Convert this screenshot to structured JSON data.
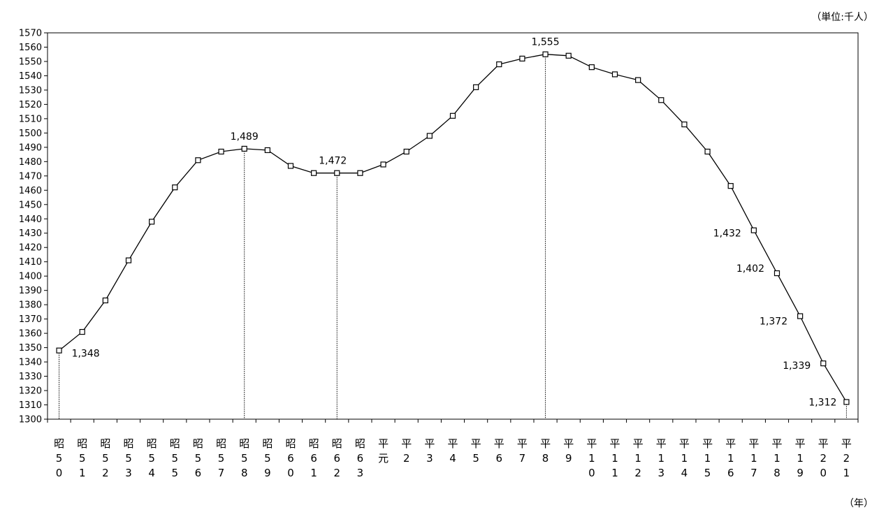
{
  "unit_label": "（単位:千人）",
  "x_unit_label": "（年）",
  "chart_data": {
    "type": "line",
    "title": "",
    "xlabel": "（年）",
    "ylabel": "（単位:千人）",
    "ylim": [
      1300,
      1570
    ],
    "ystep": 10,
    "grid": false,
    "categories": [
      [
        "昭",
        "5",
        "0"
      ],
      [
        "昭",
        "5",
        "1"
      ],
      [
        "昭",
        "5",
        "2"
      ],
      [
        "昭",
        "5",
        "3"
      ],
      [
        "昭",
        "5",
        "4"
      ],
      [
        "昭",
        "5",
        "5"
      ],
      [
        "昭",
        "5",
        "6"
      ],
      [
        "昭",
        "5",
        "7"
      ],
      [
        "昭",
        "5",
        "8"
      ],
      [
        "昭",
        "5",
        "9"
      ],
      [
        "昭",
        "6",
        "0"
      ],
      [
        "昭",
        "6",
        "1"
      ],
      [
        "昭",
        "6",
        "2"
      ],
      [
        "昭",
        "6",
        "3"
      ],
      [
        "平",
        "元"
      ],
      [
        "平",
        "2"
      ],
      [
        "平",
        "3"
      ],
      [
        "平",
        "4"
      ],
      [
        "平",
        "5"
      ],
      [
        "平",
        "6"
      ],
      [
        "平",
        "7"
      ],
      [
        "平",
        "8"
      ],
      [
        "平",
        "9"
      ],
      [
        "平",
        "1",
        "0"
      ],
      [
        "平",
        "1",
        "1"
      ],
      [
        "平",
        "1",
        "2"
      ],
      [
        "平",
        "1",
        "3"
      ],
      [
        "平",
        "1",
        "4"
      ],
      [
        "平",
        "1",
        "5"
      ],
      [
        "平",
        "1",
        "6"
      ],
      [
        "平",
        "1",
        "7"
      ],
      [
        "平",
        "1",
        "8"
      ],
      [
        "平",
        "1",
        "9"
      ],
      [
        "平",
        "2",
        "0"
      ],
      [
        "平",
        "2",
        "1"
      ]
    ],
    "series": [
      {
        "values": [
          1348,
          1361,
          1383,
          1411,
          1438,
          1462,
          1481,
          1487,
          1489,
          1488,
          1477,
          1472,
          1472,
          1472,
          1478,
          1487,
          1498,
          1512,
          1532,
          1548,
          1552,
          1555,
          1554,
          1546,
          1541,
          1537,
          1523,
          1506,
          1487,
          1463,
          1432,
          1402,
          1372,
          1339,
          1312
        ]
      }
    ],
    "annotations": [
      {
        "index": 0,
        "label": "1,348",
        "droplines": true
      },
      {
        "index": 8,
        "label": "1,489",
        "droplines": true
      },
      {
        "index": 12,
        "label": "1,472",
        "droplines": true
      },
      {
        "index": 21,
        "label": "1,555",
        "droplines": true
      },
      {
        "index": 30,
        "label": "1,432"
      },
      {
        "index": 31,
        "label": "1,402"
      },
      {
        "index": 32,
        "label": "1,372"
      },
      {
        "index": 33,
        "label": "1,339"
      },
      {
        "index": 34,
        "label": "1,312",
        "droplines": true
      }
    ]
  }
}
